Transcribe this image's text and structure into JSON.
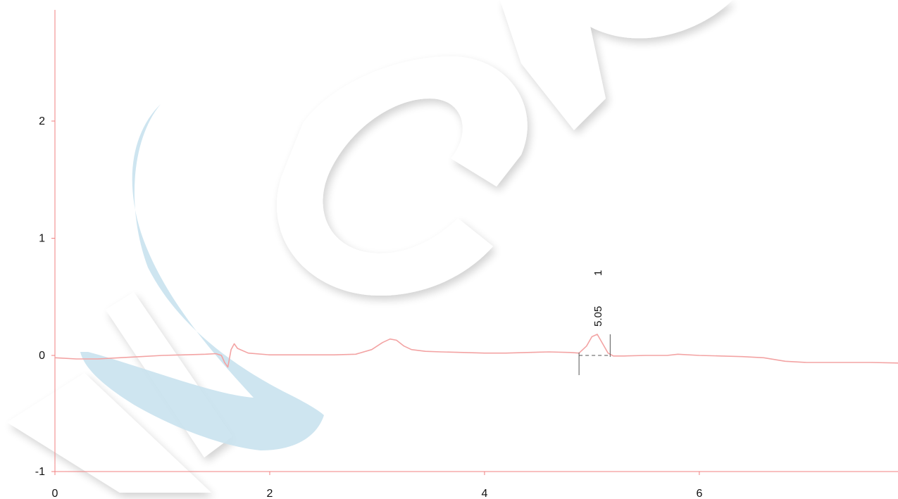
{
  "chart_data": {
    "type": "line",
    "title": "",
    "xlabel": "",
    "ylabel": "",
    "xlim": [
      0,
      7.85
    ],
    "ylim": [
      -1,
      2.9
    ],
    "x_ticks": [
      0,
      2,
      4,
      6
    ],
    "y_ticks": [
      -1,
      0,
      1,
      2
    ],
    "x_tick_labels": [
      "0",
      "2",
      "4",
      "6"
    ],
    "y_tick_labels": [
      "-1",
      "0",
      "1",
      "2"
    ],
    "grid": false,
    "legend": "none",
    "colors": {
      "axis": "#f08080",
      "trace": "#f3a3a3",
      "baseline_marker": "#555555",
      "watermark_blue": "#c9e2ee",
      "watermark_gray": "#f2f2f2"
    },
    "series": [
      {
        "x": [
          0.0,
          0.2,
          0.4,
          0.6,
          0.8,
          1.0,
          1.2,
          1.4,
          1.5,
          1.55,
          1.58,
          1.61,
          1.64,
          1.67,
          1.7,
          1.8,
          2.0,
          2.2,
          2.4,
          2.6,
          2.8,
          2.95,
          3.05,
          3.12,
          3.18,
          3.25,
          3.32,
          3.45,
          3.6,
          3.8,
          4.0,
          4.2,
          4.4,
          4.6,
          4.8,
          4.88,
          4.95,
          5.0,
          5.05,
          5.1,
          5.15,
          5.2,
          5.3,
          5.5,
          5.7,
          5.8,
          6.0,
          6.2,
          6.4,
          6.6,
          6.8,
          7.0,
          7.2,
          7.4,
          7.6,
          7.85
        ],
        "y": [
          -0.02,
          -0.03,
          -0.03,
          -0.02,
          -0.01,
          0.0,
          0.005,
          0.01,
          0.015,
          0.0,
          -0.06,
          -0.1,
          0.05,
          0.1,
          0.06,
          0.02,
          0.005,
          0.005,
          0.005,
          0.005,
          0.01,
          0.05,
          0.11,
          0.14,
          0.13,
          0.08,
          0.05,
          0.035,
          0.03,
          0.025,
          0.02,
          0.02,
          0.025,
          0.03,
          0.025,
          0.02,
          0.08,
          0.16,
          0.18,
          0.1,
          0.02,
          -0.005,
          -0.005,
          0.0,
          0.0,
          0.01,
          0.0,
          -0.005,
          -0.01,
          -0.02,
          -0.05,
          -0.06,
          -0.06,
          -0.06,
          -0.06,
          -0.065
        ]
      }
    ],
    "annotations": [
      {
        "text": "5.05",
        "x": 5.05
      },
      {
        "text": "1",
        "x": 5.05
      }
    ],
    "baseline_markers": {
      "start_x": 4.88,
      "end_x": 5.17
    }
  }
}
